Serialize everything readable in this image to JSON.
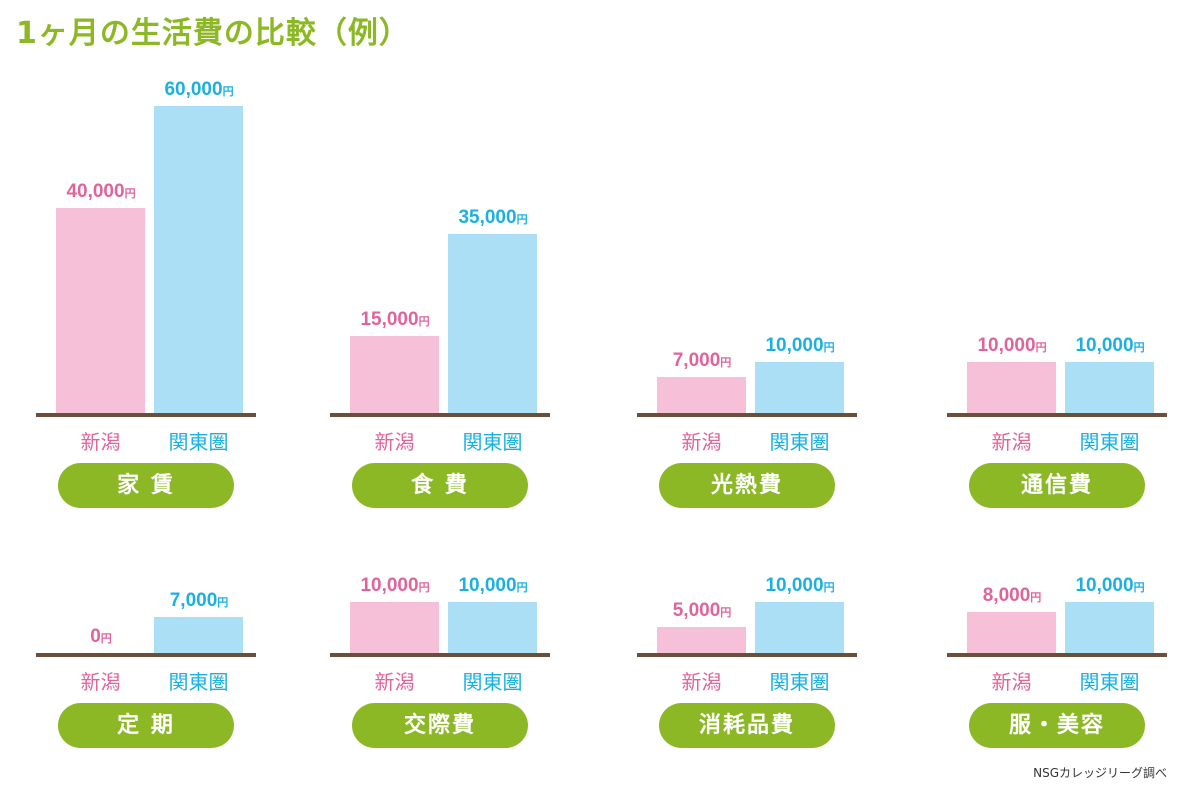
{
  "chart_data": {
    "type": "bar",
    "title": "1ヶ月の生活費の比較（例）",
    "unit": "円",
    "series_names": [
      "新潟",
      "関東圏"
    ],
    "colors": {
      "niigata": "#f5c0d8",
      "kanto": "#aadff5",
      "niigata_text": "#e0649c",
      "kanto_text": "#1cb0e0",
      "pill": "#8cb826",
      "axis": "#6b4f3a"
    },
    "categories": [
      "家 賃",
      "食 費",
      "光熱費",
      "通信費",
      "定 期",
      "交際費",
      "消耗品費",
      "服・美容"
    ],
    "series": [
      {
        "name": "新潟",
        "values": [
          40000,
          15000,
          7000,
          10000,
          0,
          10000,
          5000,
          8000
        ],
        "labels": [
          "40,000",
          "15,000",
          "7,000",
          "10,000",
          "0",
          "10,000",
          "5,000",
          "8,000"
        ]
      },
      {
        "name": "関東圏",
        "values": [
          60000,
          35000,
          10000,
          10000,
          7000,
          10000,
          10000,
          10000
        ],
        "labels": [
          "60,000",
          "35,000",
          "10,000",
          "10,000",
          "7,000",
          "10,000",
          "10,000",
          "10,000"
        ]
      }
    ],
    "ylim": [
      0,
      60000
    ],
    "source": "NSGカレッジリーグ調べ"
  }
}
